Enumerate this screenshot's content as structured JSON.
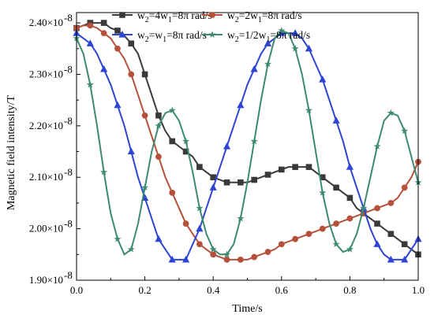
{
  "chart_data": {
    "type": "line",
    "xlabel": "Time/s",
    "ylabel": "Magnetic field intensity/T",
    "xlim": [
      0.0,
      1.0
    ],
    "ylim": [
      1.9,
      2.42
    ],
    "y_unit_exponent": "-8",
    "x_ticks": [
      0.0,
      0.2,
      0.4,
      0.6,
      0.8,
      1.0
    ],
    "x_tick_labels": [
      "0.0",
      "0.2",
      "0.4",
      "0.6",
      "0.8",
      "1.0"
    ],
    "y_ticks": [
      1.9,
      2.0,
      2.1,
      2.2,
      2.3,
      2.4
    ],
    "y_tick_labels": [
      "1.90×10",
      "2.00×10",
      "2.10×10",
      "2.20×10",
      "2.30×10",
      "2.40×10"
    ],
    "grid": false,
    "legend_position": "top",
    "series": [
      {
        "name": "w₂=4w₁=8π rad/s",
        "name_parts": {
          "a": "w",
          "b": "2",
          "c": "=4w",
          "d": "1",
          "e": "=8π rad/s"
        },
        "color": "#3a3a3a",
        "marker": "square",
        "x": [
          0.0,
          0.02,
          0.04,
          0.06,
          0.08,
          0.1,
          0.12,
          0.14,
          0.16,
          0.18,
          0.2,
          0.22,
          0.24,
          0.26,
          0.28,
          0.3,
          0.32,
          0.34,
          0.36,
          0.38,
          0.4,
          0.42,
          0.44,
          0.46,
          0.48,
          0.5,
          0.52,
          0.54,
          0.56,
          0.58,
          0.6,
          0.62,
          0.64,
          0.66,
          0.68,
          0.7,
          0.72,
          0.74,
          0.76,
          0.78,
          0.8,
          0.82,
          0.84,
          0.86,
          0.88,
          0.9,
          0.92,
          0.94,
          0.96,
          0.98,
          1.0
        ],
        "y": [
          2.39,
          2.395,
          2.4,
          2.4,
          2.4,
          2.39,
          2.385,
          2.375,
          2.36,
          2.34,
          2.3,
          2.26,
          2.22,
          2.19,
          2.17,
          2.16,
          2.15,
          2.14,
          2.12,
          2.11,
          2.1,
          2.095,
          2.09,
          2.09,
          2.09,
          2.09,
          2.095,
          2.1,
          2.105,
          2.11,
          2.115,
          2.12,
          2.12,
          2.12,
          2.12,
          2.11,
          2.1,
          2.09,
          2.08,
          2.07,
          2.06,
          2.04,
          2.03,
          2.02,
          2.01,
          2.0,
          1.99,
          1.98,
          1.97,
          1.96,
          1.95
        ]
      },
      {
        "name": "w₂=2w₁=8π rad/s",
        "name_parts": {
          "a": "w",
          "b": "2",
          "c": "=2w",
          "d": "1",
          "e": "=8π rad/s"
        },
        "color": "#b5513b",
        "marker": "circle",
        "x": [
          0.0,
          0.02,
          0.04,
          0.06,
          0.08,
          0.1,
          0.12,
          0.14,
          0.16,
          0.18,
          0.2,
          0.22,
          0.24,
          0.26,
          0.28,
          0.3,
          0.32,
          0.34,
          0.36,
          0.38,
          0.4,
          0.42,
          0.44,
          0.46,
          0.48,
          0.5,
          0.52,
          0.54,
          0.56,
          0.58,
          0.6,
          0.62,
          0.64,
          0.66,
          0.68,
          0.7,
          0.72,
          0.74,
          0.76,
          0.78,
          0.8,
          0.82,
          0.84,
          0.86,
          0.88,
          0.9,
          0.92,
          0.94,
          0.96,
          0.98,
          1.0
        ],
        "y": [
          2.39,
          2.395,
          2.395,
          2.39,
          2.38,
          2.37,
          2.35,
          2.33,
          2.3,
          2.26,
          2.22,
          2.18,
          2.14,
          2.1,
          2.07,
          2.04,
          2.01,
          1.99,
          1.97,
          1.96,
          1.95,
          1.945,
          1.94,
          1.94,
          1.94,
          1.94,
          1.945,
          1.95,
          1.955,
          1.96,
          1.97,
          1.975,
          1.98,
          1.985,
          1.99,
          1.995,
          2.0,
          2.005,
          2.01,
          2.015,
          2.02,
          2.025,
          2.03,
          2.035,
          2.04,
          2.045,
          2.05,
          2.06,
          2.08,
          2.1,
          2.13
        ]
      },
      {
        "name": "w₂=w₁=8π rad/s",
        "name_parts": {
          "a": "w",
          "b": "2",
          "c": "=w",
          "d": "1",
          "e": "=8π rad/s"
        },
        "color": "#2e45d4",
        "marker": "triangle",
        "x": [
          0.0,
          0.02,
          0.04,
          0.06,
          0.08,
          0.1,
          0.12,
          0.14,
          0.16,
          0.18,
          0.2,
          0.22,
          0.24,
          0.26,
          0.28,
          0.3,
          0.32,
          0.34,
          0.36,
          0.38,
          0.4,
          0.42,
          0.44,
          0.46,
          0.48,
          0.5,
          0.52,
          0.54,
          0.56,
          0.58,
          0.6,
          0.62,
          0.64,
          0.66,
          0.68,
          0.7,
          0.72,
          0.74,
          0.76,
          0.78,
          0.8,
          0.82,
          0.84,
          0.86,
          0.88,
          0.9,
          0.92,
          0.94,
          0.96,
          0.98,
          1.0
        ],
        "y": [
          2.38,
          2.37,
          2.36,
          2.34,
          2.31,
          2.28,
          2.24,
          2.2,
          2.15,
          2.1,
          2.06,
          2.02,
          1.98,
          1.96,
          1.94,
          1.94,
          1.94,
          1.97,
          2.0,
          2.04,
          2.08,
          2.12,
          2.16,
          2.2,
          2.24,
          2.28,
          2.31,
          2.34,
          2.36,
          2.37,
          2.38,
          2.38,
          2.38,
          2.37,
          2.35,
          2.32,
          2.29,
          2.25,
          2.21,
          2.17,
          2.12,
          2.08,
          2.04,
          2.0,
          1.97,
          1.95,
          1.94,
          1.94,
          1.94,
          1.96,
          1.98
        ]
      },
      {
        "name": "w₂=1/2w₁=8π rad/s",
        "name_parts": {
          "a": "w",
          "b": "2",
          "c": "=1/2w",
          "d": "1",
          "e": "=8π rad/s"
        },
        "color": "#3e8a6e",
        "marker": "star",
        "x": [
          0.0,
          0.02,
          0.04,
          0.06,
          0.08,
          0.1,
          0.12,
          0.14,
          0.16,
          0.18,
          0.2,
          0.22,
          0.24,
          0.26,
          0.28,
          0.3,
          0.32,
          0.34,
          0.36,
          0.38,
          0.4,
          0.42,
          0.44,
          0.46,
          0.48,
          0.5,
          0.52,
          0.54,
          0.56,
          0.58,
          0.6,
          0.62,
          0.64,
          0.66,
          0.68,
          0.7,
          0.72,
          0.74,
          0.76,
          0.78,
          0.8,
          0.82,
          0.84,
          0.86,
          0.88,
          0.9,
          0.92,
          0.94,
          0.96,
          0.98,
          1.0
        ],
        "y": [
          2.37,
          2.34,
          2.28,
          2.2,
          2.11,
          2.03,
          1.98,
          1.95,
          1.96,
          2.01,
          2.08,
          2.15,
          2.2,
          2.225,
          2.23,
          2.21,
          2.17,
          2.11,
          2.04,
          1.99,
          1.96,
          1.95,
          1.95,
          1.97,
          2.02,
          2.09,
          2.17,
          2.25,
          2.32,
          2.37,
          2.385,
          2.38,
          2.35,
          2.3,
          2.23,
          2.15,
          2.07,
          2.01,
          1.97,
          1.955,
          1.96,
          1.99,
          2.04,
          2.1,
          2.16,
          2.21,
          2.225,
          2.22,
          2.19,
          2.14,
          2.09
        ]
      }
    ]
  }
}
